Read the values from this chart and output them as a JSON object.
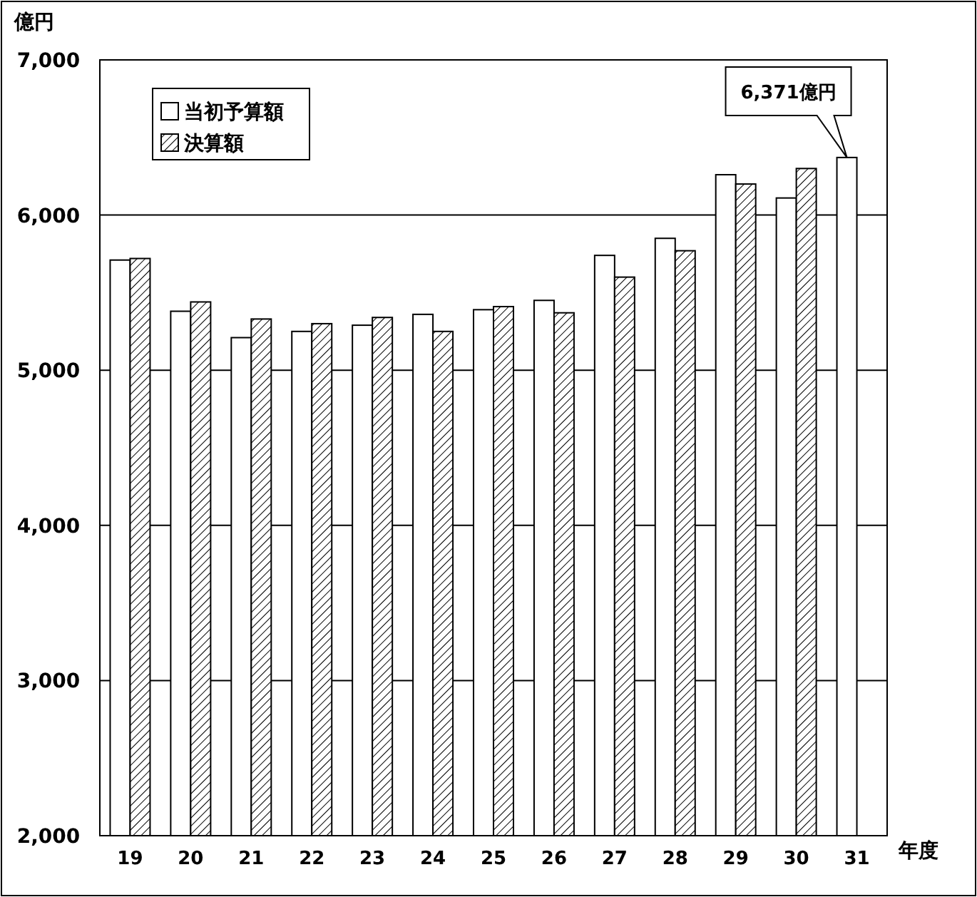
{
  "chart_data": {
    "type": "bar",
    "ylabel": "億円",
    "xlabel": "年度",
    "categories": [
      "19",
      "20",
      "21",
      "22",
      "23",
      "24",
      "25",
      "26",
      "27",
      "28",
      "29",
      "30",
      "31"
    ],
    "series": [
      {
        "name": "当初予算額",
        "color": "#ffffff",
        "values": [
          5710,
          5380,
          5210,
          5250,
          5290,
          5360,
          5390,
          5450,
          5740,
          5850,
          6260,
          6110,
          6371
        ]
      },
      {
        "name": "決算額",
        "color": "#000000",
        "values": [
          5720,
          5440,
          5330,
          5300,
          5340,
          5250,
          5410,
          5370,
          5600,
          5770,
          6200,
          6300,
          null
        ]
      }
    ],
    "ylim": [
      2000,
      7000
    ],
    "yticks": [
      {
        "value": 2000,
        "label": "2,000"
      },
      {
        "value": 3000,
        "label": "3,000"
      },
      {
        "value": 4000,
        "label": "4,000"
      },
      {
        "value": 5000,
        "label": "5,000"
      },
      {
        "value": 6000,
        "label": "6,000"
      },
      {
        "value": 7000,
        "label": "7,000"
      }
    ],
    "grid": "y",
    "legend": "top left",
    "annotations": [
      "6,371億円"
    ]
  }
}
